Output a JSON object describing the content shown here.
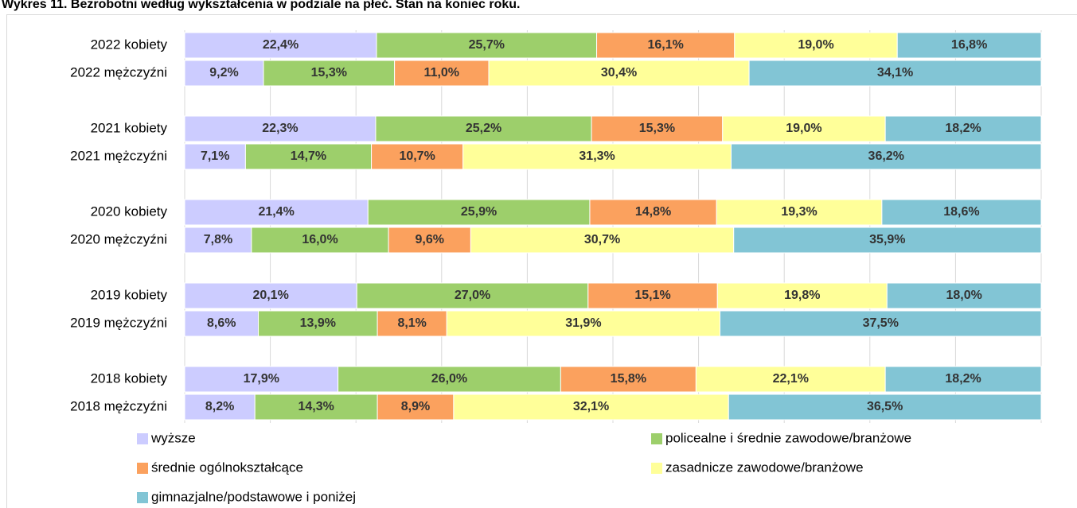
{
  "chart_data": {
    "type": "stacked-bar-horizontal",
    "title": "Wykres 11. Bezrobotni według wykształcenia w podziale na płeć. Stan na koniec roku.",
    "categories": [
      "2022 kobiety",
      "2022 mężczyźni",
      "2021 kobiety",
      "2021 mężczyźni",
      "2020 kobiety",
      "2020 mężczyźni",
      "2019 kobiety",
      "2019 mężczyźni",
      "2018 kobiety",
      "2018 mężczyźni"
    ],
    "xlim": [
      0,
      100
    ],
    "xticks": [
      0,
      10,
      20,
      30,
      40,
      50,
      60,
      70,
      80,
      90,
      100
    ],
    "grid": true,
    "legend": "bottom",
    "series": [
      {
        "name": "wyższe",
        "color": "#ccccff",
        "values": [
          22.4,
          9.2,
          22.3,
          7.1,
          21.4,
          7.8,
          20.1,
          8.6,
          17.9,
          8.2
        ],
        "value_labels": [
          "22,4%",
          "9,2%",
          "22,3%",
          "7,1%",
          "21,4%",
          "7,8%",
          "20,1%",
          "8,6%",
          "17,9%",
          "8,2%"
        ]
      },
      {
        "name": "policealne i średnie zawodowe/branżowe",
        "color": "#9dcf6b",
        "values": [
          25.7,
          15.3,
          25.2,
          14.7,
          25.9,
          16.0,
          27.0,
          13.9,
          26.0,
          14.3
        ],
        "value_labels": [
          "25,7%",
          "15,3%",
          "25,2%",
          "14,7%",
          "25,9%",
          "16,0%",
          "27,0%",
          "13,9%",
          "26,0%",
          "14,3%"
        ]
      },
      {
        "name": "średnie ogólnokształcące",
        "color": "#fba15e",
        "values": [
          16.1,
          11.0,
          15.3,
          10.7,
          14.8,
          9.6,
          15.1,
          8.1,
          15.8,
          8.9
        ],
        "value_labels": [
          "16,1%",
          "11,0%",
          "15,3%",
          "10,7%",
          "14,8%",
          "9,6%",
          "15,1%",
          "8,1%",
          "15,8%",
          "8,9%"
        ]
      },
      {
        "name": "zasadnicze zawodowe/branżowe",
        "color": "#ffff99",
        "values": [
          19.0,
          30.4,
          19.0,
          31.3,
          19.3,
          30.7,
          19.8,
          31.9,
          22.1,
          32.1
        ],
        "value_labels": [
          "19,0%",
          "30,4%",
          "19,0%",
          "31,3%",
          "19,3%",
          "30,7%",
          "19,8%",
          "31,9%",
          "22,1%",
          "32,1%"
        ]
      },
      {
        "name": "gimnazjalne/podstawowe i poniżej",
        "color": "#82c5d5",
        "values": [
          16.8,
          34.1,
          18.2,
          36.2,
          18.6,
          35.9,
          18.0,
          37.5,
          18.2,
          36.5
        ],
        "value_labels": [
          "16,8%",
          "34,1%",
          "18,2%",
          "36,2%",
          "18,6%",
          "35,9%",
          "18,0%",
          "37,5%",
          "18,2%",
          "36,5%"
        ]
      }
    ]
  }
}
